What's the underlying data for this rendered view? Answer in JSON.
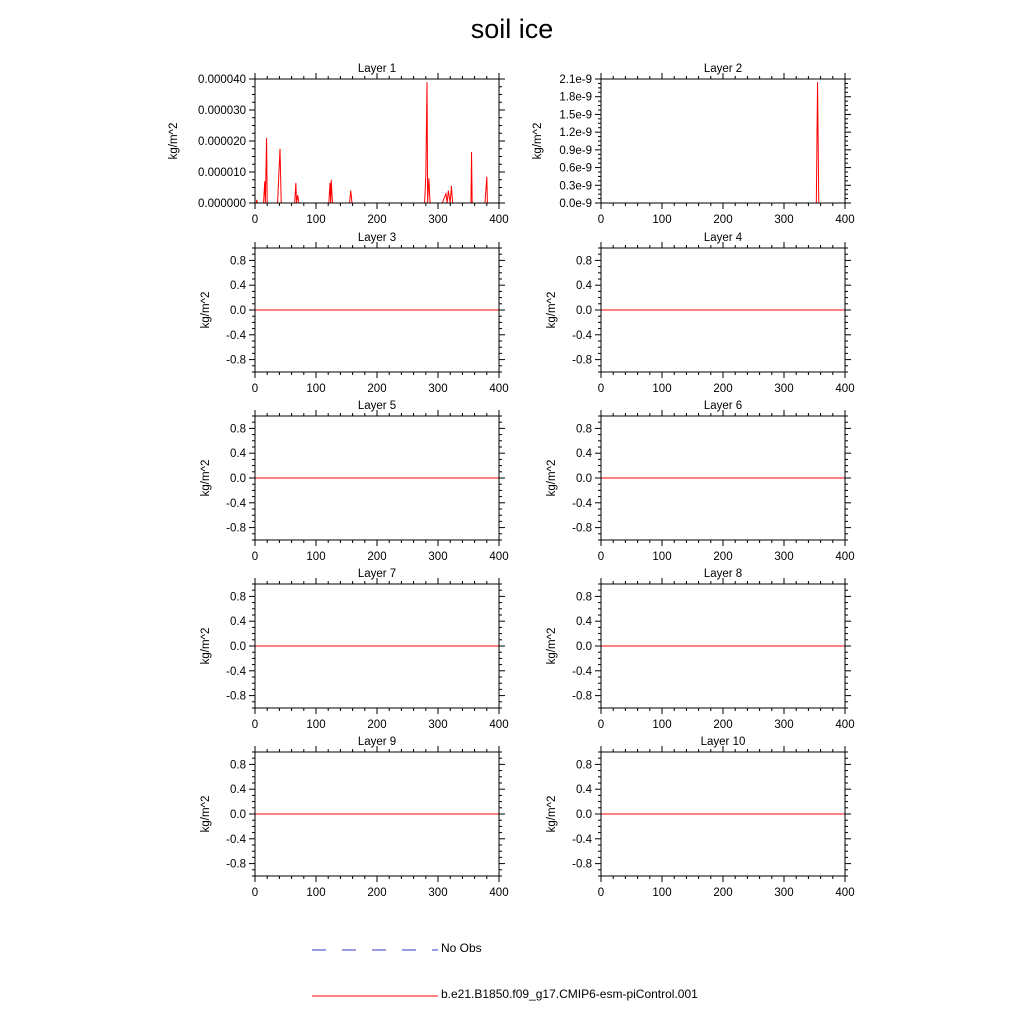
{
  "title": "soil ice",
  "series_colors": {
    "model": "#ff0000",
    "obs": "#3333cc"
  },
  "legend": [
    {
      "label": "No Obs",
      "style": "dashed",
      "color": "#3333cc"
    },
    {
      "label": "b.e21.B1850.f09_g17.CMIP6-esm-piControl.001",
      "style": "solid",
      "color": "#ff0000"
    }
  ],
  "chart_data": [
    {
      "type": "line",
      "title": "Layer 1",
      "ylabel": "kg/m^2",
      "xlim": [
        0,
        400
      ],
      "ylim": [
        0,
        4e-05
      ],
      "xticks": [
        0,
        100,
        200,
        300,
        400
      ],
      "xtick_labels": [
        "0",
        "100",
        "200",
        "300",
        "400"
      ],
      "yticks": [
        0,
        1e-05,
        2e-05,
        3e-05,
        4e-05
      ],
      "ytick_labels": [
        "0.000000",
        "0.000010",
        "0.000020",
        "0.000030",
        "0.000040"
      ],
      "series": [
        {
          "x": [
            0,
            2,
            3,
            4,
            14,
            16,
            17,
            19,
            20,
            37,
            41,
            43,
            44,
            65,
            67,
            68,
            70,
            72,
            74,
            121,
            123,
            124,
            125,
            127,
            128,
            155,
            157,
            159,
            256,
            278,
            280,
            282,
            283,
            285,
            287,
            288,
            307,
            313,
            315,
            317,
            320,
            322,
            324,
            326,
            352,
            354,
            355,
            356,
            357,
            358,
            377,
            380,
            381,
            383,
            385,
            400
          ],
          "y": [
            0,
            0,
            1e-06,
            0,
            0,
            7e-06,
            0,
            2.1e-05,
            0,
            0,
            1.75e-05,
            0,
            0,
            0,
            6.5e-06,
            0,
            2.5e-06,
            0,
            0,
            0,
            6.5e-06,
            0,
            7.5e-06,
            0,
            0,
            0,
            4e-06,
            0,
            0,
            0,
            8.5e-06,
            3.9e-05,
            0,
            8e-06,
            0,
            0,
            0,
            3e-06,
            0,
            4e-06,
            0,
            5.5e-06,
            0,
            0,
            0,
            0,
            1.65e-05,
            0,
            0,
            0,
            0,
            8.5e-06,
            0,
            0,
            0,
            0
          ]
        }
      ]
    },
    {
      "type": "line",
      "title": "Layer 2",
      "ylabel": "kg/m^2",
      "xlim": [
        0,
        400
      ],
      "ylim": [
        0,
        2.1e-09
      ],
      "xticks": [
        0,
        100,
        200,
        300,
        400
      ],
      "xtick_labels": [
        "0",
        "100",
        "200",
        "300",
        "400"
      ],
      "yticks": [
        0,
        3e-10,
        6e-10,
        9e-10,
        1.2e-09,
        1.5e-09,
        1.8e-09,
        2.1e-09
      ],
      "ytick_labels": [
        "0.0e-9",
        "0.3e-9",
        "0.6e-9",
        "0.9e-9",
        "1.2e-9",
        "1.5e-9",
        "1.8e-9",
        "2.1e-9"
      ],
      "series": [
        {
          "x": [
            0,
            353,
            355,
            357,
            400
          ],
          "y": [
            0,
            0,
            2.05e-09,
            0,
            0
          ]
        }
      ]
    },
    {
      "type": "line",
      "title": "Layer 3",
      "ylabel": "kg/m^2",
      "xlim": [
        0,
        400
      ],
      "ylim": [
        -1,
        1
      ],
      "xticks": [
        0,
        100,
        200,
        300,
        400
      ],
      "xtick_labels": [
        "0",
        "100",
        "200",
        "300",
        "400"
      ],
      "yticks": [
        -0.8,
        -0.4,
        0,
        0.4,
        0.8
      ],
      "ytick_labels": [
        "-0.8",
        "-0.4",
        "0.0",
        "0.4",
        "0.8"
      ],
      "series": [
        {
          "x": [
            0,
            400
          ],
          "y": [
            0,
            0
          ]
        }
      ]
    },
    {
      "type": "line",
      "title": "Layer 4",
      "ylabel": "kg/m^2",
      "xlim": [
        0,
        400
      ],
      "ylim": [
        -1,
        1
      ],
      "xticks": [
        0,
        100,
        200,
        300,
        400
      ],
      "xtick_labels": [
        "0",
        "100",
        "200",
        "300",
        "400"
      ],
      "yticks": [
        -0.8,
        -0.4,
        0,
        0.4,
        0.8
      ],
      "ytick_labels": [
        "-0.8",
        "-0.4",
        "0.0",
        "0.4",
        "0.8"
      ],
      "series": [
        {
          "x": [
            0,
            400
          ],
          "y": [
            0,
            0
          ]
        }
      ]
    },
    {
      "type": "line",
      "title": "Layer 5",
      "ylabel": "kg/m^2",
      "xlim": [
        0,
        400
      ],
      "ylim": [
        -1,
        1
      ],
      "xticks": [
        0,
        100,
        200,
        300,
        400
      ],
      "xtick_labels": [
        "0",
        "100",
        "200",
        "300",
        "400"
      ],
      "yticks": [
        -0.8,
        -0.4,
        0,
        0.4,
        0.8
      ],
      "ytick_labels": [
        "-0.8",
        "-0.4",
        "0.0",
        "0.4",
        "0.8"
      ],
      "series": [
        {
          "x": [
            0,
            400
          ],
          "y": [
            0,
            0
          ]
        }
      ]
    },
    {
      "type": "line",
      "title": "Layer 6",
      "ylabel": "kg/m^2",
      "xlim": [
        0,
        400
      ],
      "ylim": [
        -1,
        1
      ],
      "xticks": [
        0,
        100,
        200,
        300,
        400
      ],
      "xtick_labels": [
        "0",
        "100",
        "200",
        "300",
        "400"
      ],
      "yticks": [
        -0.8,
        -0.4,
        0,
        0.4,
        0.8
      ],
      "ytick_labels": [
        "-0.8",
        "-0.4",
        "0.0",
        "0.4",
        "0.8"
      ],
      "series": [
        {
          "x": [
            0,
            400
          ],
          "y": [
            0,
            0
          ]
        }
      ]
    },
    {
      "type": "line",
      "title": "Layer 7",
      "ylabel": "kg/m^2",
      "xlim": [
        0,
        400
      ],
      "ylim": [
        -1,
        1
      ],
      "xticks": [
        0,
        100,
        200,
        300,
        400
      ],
      "xtick_labels": [
        "0",
        "100",
        "200",
        "300",
        "400"
      ],
      "yticks": [
        -0.8,
        -0.4,
        0,
        0.4,
        0.8
      ],
      "ytick_labels": [
        "-0.8",
        "-0.4",
        "0.0",
        "0.4",
        "0.8"
      ],
      "series": [
        {
          "x": [
            0,
            400
          ],
          "y": [
            0,
            0
          ]
        }
      ]
    },
    {
      "type": "line",
      "title": "Layer 8",
      "ylabel": "kg/m^2",
      "xlim": [
        0,
        400
      ],
      "ylim": [
        -1,
        1
      ],
      "xticks": [
        0,
        100,
        200,
        300,
        400
      ],
      "xtick_labels": [
        "0",
        "100",
        "200",
        "300",
        "400"
      ],
      "yticks": [
        -0.8,
        -0.4,
        0,
        0.4,
        0.8
      ],
      "ytick_labels": [
        "-0.8",
        "-0.4",
        "0.0",
        "0.4",
        "0.8"
      ],
      "series": [
        {
          "x": [
            0,
            400
          ],
          "y": [
            0,
            0
          ]
        }
      ]
    },
    {
      "type": "line",
      "title": "Layer 9",
      "ylabel": "kg/m^2",
      "xlim": [
        0,
        400
      ],
      "ylim": [
        -1,
        1
      ],
      "xticks": [
        0,
        100,
        200,
        300,
        400
      ],
      "xtick_labels": [
        "0",
        "100",
        "200",
        "300",
        "400"
      ],
      "yticks": [
        -0.8,
        -0.4,
        0,
        0.4,
        0.8
      ],
      "ytick_labels": [
        "-0.8",
        "-0.4",
        "0.0",
        "0.4",
        "0.8"
      ],
      "series": [
        {
          "x": [
            0,
            400
          ],
          "y": [
            0,
            0
          ]
        }
      ]
    },
    {
      "type": "line",
      "title": "Layer 10",
      "ylabel": "kg/m^2",
      "xlim": [
        0,
        400
      ],
      "ylim": [
        -1,
        1
      ],
      "xticks": [
        0,
        100,
        200,
        300,
        400
      ],
      "xtick_labels": [
        "0",
        "100",
        "200",
        "300",
        "400"
      ],
      "yticks": [
        -0.8,
        -0.4,
        0,
        0.4,
        0.8
      ],
      "ytick_labels": [
        "-0.8",
        "-0.4",
        "0.0",
        "0.4",
        "0.8"
      ],
      "series": [
        {
          "x": [
            0,
            400
          ],
          "y": [
            0,
            0
          ]
        }
      ]
    }
  ]
}
